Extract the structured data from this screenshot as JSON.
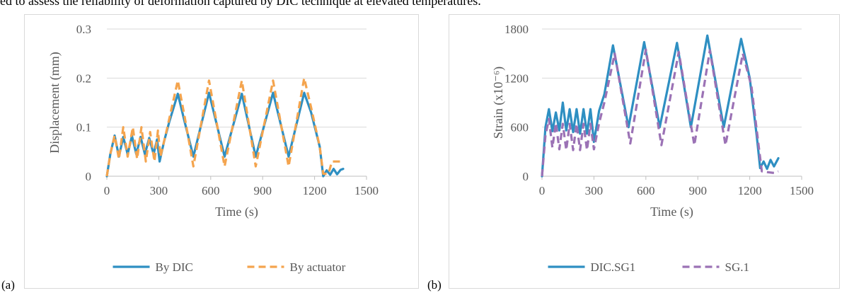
{
  "caption_fragment": "ed to assess the reliability of deformation captured by DIC technique at elevated temperatures.",
  "panels": [
    {
      "label": "(a)"
    },
    {
      "label": "(b)"
    }
  ],
  "chart_data": [
    {
      "type": "line",
      "xlabel": "Time (s)",
      "ylabel": "Displacement (mm)",
      "xlim": [
        0,
        1500
      ],
      "ylim": [
        0,
        0.3
      ],
      "x_ticks": [
        0,
        300,
        600,
        900,
        1200,
        1500
      ],
      "y_ticks": [
        0,
        0.1,
        0.2,
        0.3
      ],
      "y_tick_labels": [
        "0",
        "0.1",
        "0.2",
        "0.3"
      ],
      "grid": "horizontal",
      "legend": "bottom",
      "series": [
        {
          "name": "By DIC",
          "color": "#2e8fc2",
          "style": "solid",
          "x": [
            0,
            20,
            45,
            70,
            95,
            120,
            145,
            170,
            195,
            220,
            245,
            270,
            290,
            305,
            330,
            360,
            410,
            450,
            500,
            590,
            680,
            780,
            860,
            960,
            1050,
            1140,
            1180,
            1230,
            1250,
            1270,
            1290,
            1310,
            1330,
            1350,
            1365
          ],
          "y": [
            0,
            0.045,
            0.083,
            0.04,
            0.08,
            0.045,
            0.082,
            0.045,
            0.08,
            0.045,
            0.078,
            0.045,
            0.075,
            0.03,
            0.07,
            0.11,
            0.168,
            0.11,
            0.04,
            0.17,
            0.04,
            0.168,
            0.04,
            0.17,
            0.04,
            0.17,
            0.13,
            0.06,
            0.0,
            0.012,
            0.003,
            0.015,
            0.004,
            0.013,
            0.015
          ]
        },
        {
          "name": "By actuator",
          "color": "#f4a44e",
          "style": "dashed",
          "x": [
            0,
            20,
            45,
            70,
            95,
            120,
            150,
            175,
            200,
            225,
            250,
            275,
            295,
            310,
            350,
            410,
            450,
            500,
            590,
            680,
            780,
            860,
            960,
            1050,
            1140,
            1180,
            1230,
            1250,
            1280,
            1300,
            1365
          ],
          "y": [
            0,
            0.045,
            0.083,
            0.035,
            0.1,
            0.04,
            0.1,
            0.035,
            0.1,
            0.03,
            0.09,
            0.03,
            0.093,
            0.04,
            0.1,
            0.195,
            0.12,
            0.02,
            0.195,
            0.02,
            0.195,
            0.02,
            0.195,
            0.02,
            0.2,
            0.14,
            0.06,
            0.005,
            0.005,
            0.03,
            0.03
          ]
        }
      ]
    },
    {
      "type": "line",
      "xlabel": "Time (s)",
      "ylabel": "Strain (x10⁻⁶)",
      "xlim": [
        0,
        1500
      ],
      "ylim": [
        0,
        1800
      ],
      "x_ticks": [
        0,
        300,
        600,
        900,
        1200,
        1500
      ],
      "y_ticks": [
        0,
        600,
        1200,
        1800
      ],
      "y_tick_labels": [
        "0",
        "600",
        "1200",
        "1800"
      ],
      "grid": "horizontal",
      "legend": "bottom",
      "series": [
        {
          "name": "DIC.SG1",
          "color": "#2e8fc2",
          "style": "solid",
          "x": [
            0,
            20,
            40,
            60,
            80,
            100,
            120,
            140,
            160,
            180,
            200,
            220,
            240,
            260,
            280,
            300,
            330,
            360,
            410,
            500,
            590,
            680,
            780,
            860,
            955,
            1050,
            1150,
            1200,
            1240,
            1260,
            1280,
            1300,
            1320,
            1340,
            1365
          ],
          "y": [
            0,
            600,
            820,
            550,
            780,
            560,
            900,
            560,
            820,
            540,
            820,
            520,
            820,
            520,
            820,
            420,
            800,
            1000,
            1600,
            600,
            1640,
            600,
            1630,
            600,
            1720,
            600,
            1680,
            1200,
            500,
            100,
            180,
            90,
            200,
            120,
            220
          ]
        },
        {
          "name": "SG.1",
          "color": "#9b72b5",
          "style": "dashed",
          "x": [
            0,
            20,
            40,
            60,
            80,
            100,
            120,
            140,
            160,
            180,
            200,
            220,
            240,
            260,
            280,
            300,
            330,
            360,
            420,
            510,
            600,
            690,
            790,
            880,
            970,
            1060,
            1160,
            1210,
            1250,
            1270,
            1300,
            1340,
            1365
          ],
          "y": [
            0,
            500,
            700,
            350,
            650,
            330,
            640,
            320,
            640,
            320,
            640,
            320,
            640,
            320,
            640,
            330,
            650,
            900,
            1500,
            400,
            1550,
            380,
            1520,
            380,
            1540,
            380,
            1500,
            1100,
            400,
            60,
            50,
            40,
            60
          ]
        }
      ]
    }
  ]
}
